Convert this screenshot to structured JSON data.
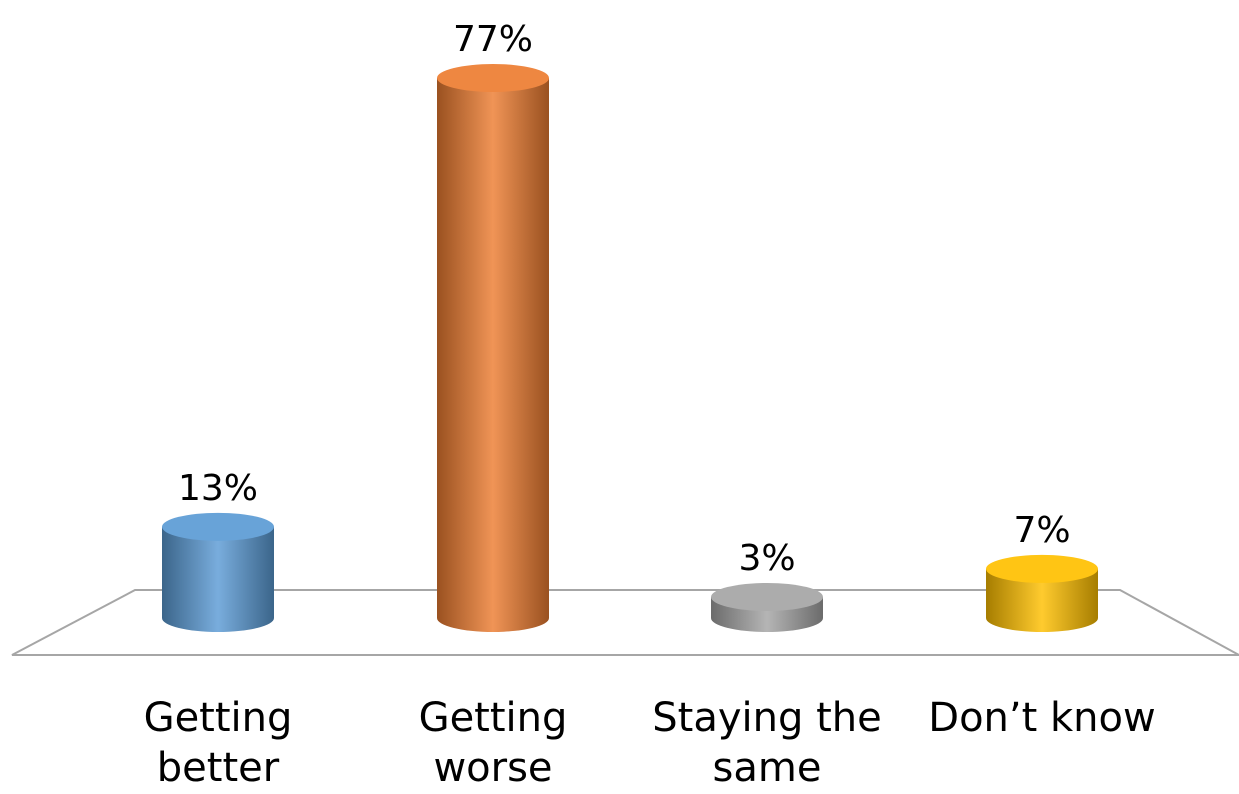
{
  "chart_data": {
    "type": "bar",
    "style": "3d-cylinder",
    "categories": [
      "Getting better",
      "Getting worse",
      "Staying the same",
      "Don’t know"
    ],
    "category_labels": [
      "Getting\nbetter",
      "Getting worse",
      "Staying the\nsame",
      "Don’t know"
    ],
    "values": [
      13,
      77,
      3,
      7
    ],
    "data_labels": [
      "13%",
      "77%",
      "3%",
      "7%"
    ],
    "colors": [
      "#5B9BD5",
      "#ED7D31",
      "#A5A5A5",
      "#FFC000"
    ],
    "ylim": [
      0,
      77
    ],
    "grid": false,
    "legend": "none",
    "title": "",
    "xlabel": "",
    "ylabel": ""
  }
}
